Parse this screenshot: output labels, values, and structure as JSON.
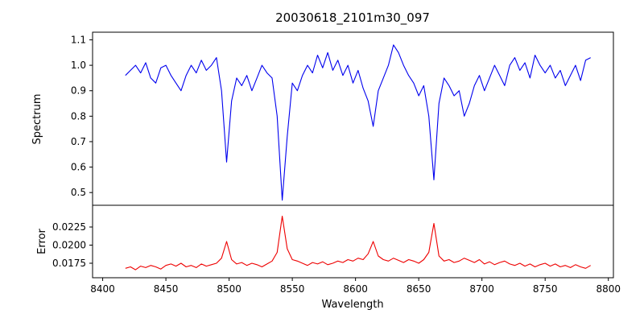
{
  "chart_data": {
    "type": "line",
    "title": "20030618_2101m30_097",
    "xlabel": "Wavelength",
    "xlim": [
      8392,
      8804
    ],
    "xticks": [
      8400,
      8450,
      8500,
      8550,
      8600,
      8650,
      8700,
      8750,
      8800
    ],
    "xticklabels": [
      "8400",
      "8450",
      "8500",
      "8550",
      "8600",
      "8650",
      "8700",
      "8750",
      "8800"
    ],
    "grid": false,
    "legend": "none",
    "x": [
      8418,
      8422,
      8426,
      8430,
      8434,
      8438,
      8442,
      8446,
      8450,
      8454,
      8458,
      8462,
      8466,
      8470,
      8474,
      8478,
      8482,
      8486,
      8490,
      8494,
      8498,
      8502,
      8506,
      8510,
      8514,
      8518,
      8522,
      8526,
      8530,
      8534,
      8538,
      8542,
      8546,
      8550,
      8554,
      8558,
      8562,
      8566,
      8570,
      8574,
      8578,
      8582,
      8586,
      8590,
      8594,
      8598,
      8602,
      8606,
      8610,
      8614,
      8618,
      8622,
      8626,
      8630,
      8634,
      8638,
      8642,
      8646,
      8650,
      8654,
      8658,
      8662,
      8666,
      8670,
      8674,
      8678,
      8682,
      8686,
      8690,
      8694,
      8698,
      8702,
      8706,
      8710,
      8714,
      8718,
      8722,
      8726,
      8730,
      8734,
      8738,
      8742,
      8746,
      8750,
      8754,
      8758,
      8762,
      8766,
      8770,
      8774,
      8778,
      8782,
      8786
    ],
    "panels": [
      {
        "name": "spectrum",
        "ylabel": "Spectrum",
        "color": "#0000ee",
        "ylim": [
          0.45,
          1.13
        ],
        "yticks": [
          0.5,
          0.6,
          0.7,
          0.8,
          0.9,
          1.0,
          1.1
        ],
        "yticklabels": [
          "0.5",
          "0.6",
          "0.7",
          "0.8",
          "0.9",
          "1.0",
          "1.1"
        ],
        "values": [
          0.96,
          0.98,
          1.0,
          0.97,
          1.01,
          0.95,
          0.93,
          0.99,
          1.0,
          0.96,
          0.93,
          0.9,
          0.96,
          1.0,
          0.97,
          1.02,
          0.98,
          1.0,
          1.03,
          0.9,
          0.62,
          0.86,
          0.95,
          0.92,
          0.96,
          0.9,
          0.95,
          1.0,
          0.97,
          0.95,
          0.8,
          0.47,
          0.72,
          0.93,
          0.9,
          0.96,
          1.0,
          0.97,
          1.04,
          0.99,
          1.05,
          0.98,
          1.02,
          0.96,
          1.0,
          0.93,
          0.98,
          0.91,
          0.86,
          0.76,
          0.9,
          0.95,
          1.0,
          1.08,
          1.05,
          1.0,
          0.96,
          0.93,
          0.88,
          0.92,
          0.8,
          0.55,
          0.85,
          0.95,
          0.92,
          0.88,
          0.9,
          0.8,
          0.85,
          0.92,
          0.96,
          0.9,
          0.95,
          1.0,
          0.96,
          0.92,
          1.0,
          1.03,
          0.98,
          1.01,
          0.95,
          1.04,
          1.0,
          0.97,
          1.0,
          0.95,
          0.98,
          0.92,
          0.96,
          1.0,
          0.94,
          1.02,
          1.03
        ],
        "absorption_features": [
          {
            "wavelength": 8498,
            "depth": 0.62
          },
          {
            "wavelength": 8542,
            "depth": 0.47
          },
          {
            "wavelength": 8662,
            "depth": 0.55
          }
        ]
      },
      {
        "name": "error",
        "ylabel": "Error",
        "color": "#ee0000",
        "ylim": [
          0.0155,
          0.0255
        ],
        "yticks": [
          0.0175,
          0.02,
          0.0225
        ],
        "yticklabels": [
          "0.0175",
          "0.0200",
          "0.0225"
        ],
        "values": [
          0.0168,
          0.017,
          0.0166,
          0.0171,
          0.0169,
          0.0172,
          0.017,
          0.0167,
          0.0172,
          0.0174,
          0.0171,
          0.0175,
          0.017,
          0.0172,
          0.0169,
          0.0174,
          0.0171,
          0.0173,
          0.0175,
          0.0182,
          0.0205,
          0.018,
          0.0174,
          0.0176,
          0.0172,
          0.0175,
          0.0173,
          0.017,
          0.0174,
          0.0178,
          0.019,
          0.024,
          0.0195,
          0.018,
          0.0178,
          0.0175,
          0.0172,
          0.0176,
          0.0174,
          0.0177,
          0.0173,
          0.0175,
          0.0178,
          0.0176,
          0.018,
          0.0178,
          0.0182,
          0.018,
          0.0188,
          0.0205,
          0.0185,
          0.018,
          0.0178,
          0.0182,
          0.0179,
          0.0176,
          0.018,
          0.0178,
          0.0175,
          0.018,
          0.019,
          0.023,
          0.0185,
          0.0178,
          0.018,
          0.0176,
          0.0178,
          0.0182,
          0.0179,
          0.0176,
          0.018,
          0.0174,
          0.0177,
          0.0173,
          0.0176,
          0.0178,
          0.0174,
          0.0172,
          0.0175,
          0.0171,
          0.0174,
          0.017,
          0.0173,
          0.0175,
          0.0171,
          0.0174,
          0.017,
          0.0172,
          0.0169,
          0.0173,
          0.017,
          0.0168,
          0.0172
        ]
      }
    ]
  }
}
